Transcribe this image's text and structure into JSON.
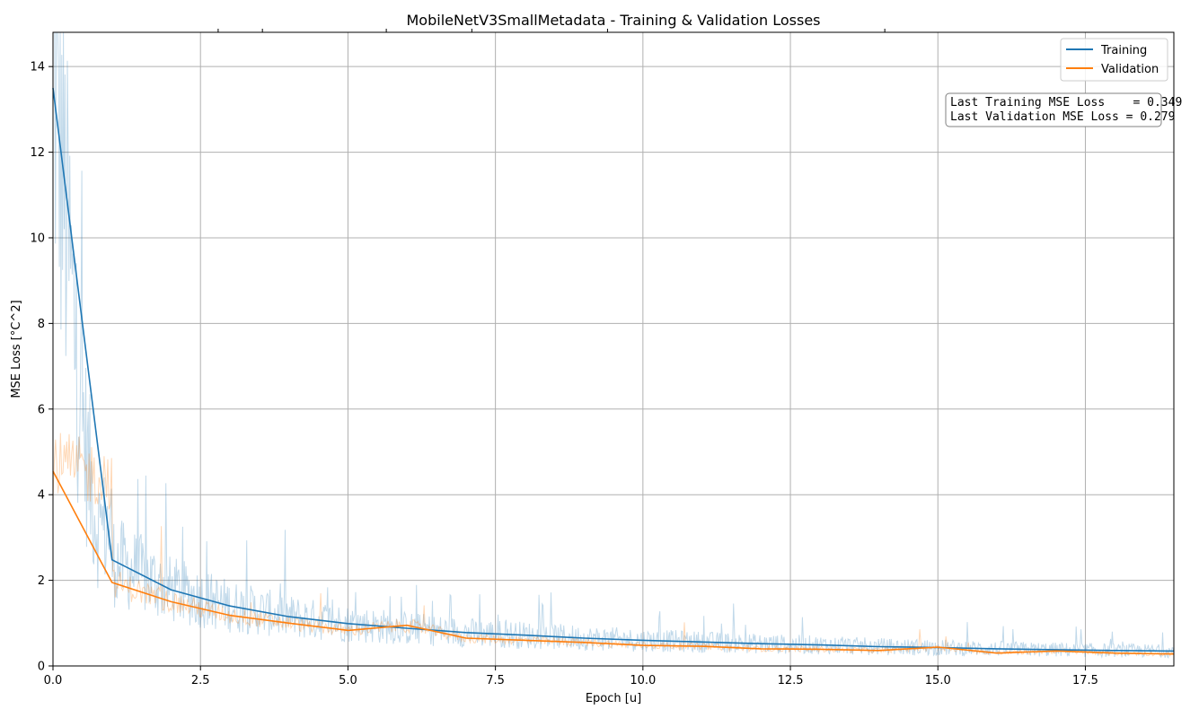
{
  "chart_data": {
    "type": "line",
    "title": "MobileNetV3SmallMetadata - Training & Validation Losses",
    "xlabel": "Epoch [u]",
    "ylabel": "MSE Loss [°C^2]",
    "xlim": [
      0,
      19
    ],
    "ylim": [
      0,
      14.8
    ],
    "x_ticks": [
      "0.0",
      "2.5",
      "5.0",
      "7.5",
      "10.0",
      "12.5",
      "15.0",
      "17.5"
    ],
    "y_ticks": [
      "0",
      "2",
      "4",
      "6",
      "8",
      "10",
      "12",
      "14"
    ],
    "grid": true,
    "legend_position": "top-right",
    "colors": {
      "training": "#1f77b4",
      "validation": "#ff7f0e"
    },
    "series": [
      {
        "name": "Training",
        "x": [
          0,
          1,
          2,
          3,
          4,
          5,
          6,
          7,
          8,
          9,
          10,
          11,
          12,
          13,
          14,
          15,
          16,
          17,
          18,
          19
        ],
        "values": [
          13.5,
          2.48,
          1.78,
          1.4,
          1.15,
          0.99,
          0.88,
          0.78,
          0.72,
          0.65,
          0.6,
          0.56,
          0.52,
          0.49,
          0.45,
          0.43,
          0.4,
          0.38,
          0.36,
          0.349
        ]
      },
      {
        "name": "Validation",
        "x": [
          0,
          1,
          2,
          3,
          4,
          5,
          6,
          7,
          8,
          9,
          10,
          11,
          12,
          13,
          14,
          15,
          16,
          17,
          18,
          19
        ],
        "values": [
          4.55,
          1.95,
          1.5,
          1.18,
          1.0,
          0.83,
          0.95,
          0.65,
          0.6,
          0.55,
          0.48,
          0.46,
          0.4,
          0.39,
          0.36,
          0.44,
          0.3,
          0.35,
          0.3,
          0.279
        ]
      }
    ],
    "annotation": {
      "line1": "Last Training MSE Loss    = 0.349",
      "line2": "Last Validation MSE Loss = 0.279"
    }
  }
}
